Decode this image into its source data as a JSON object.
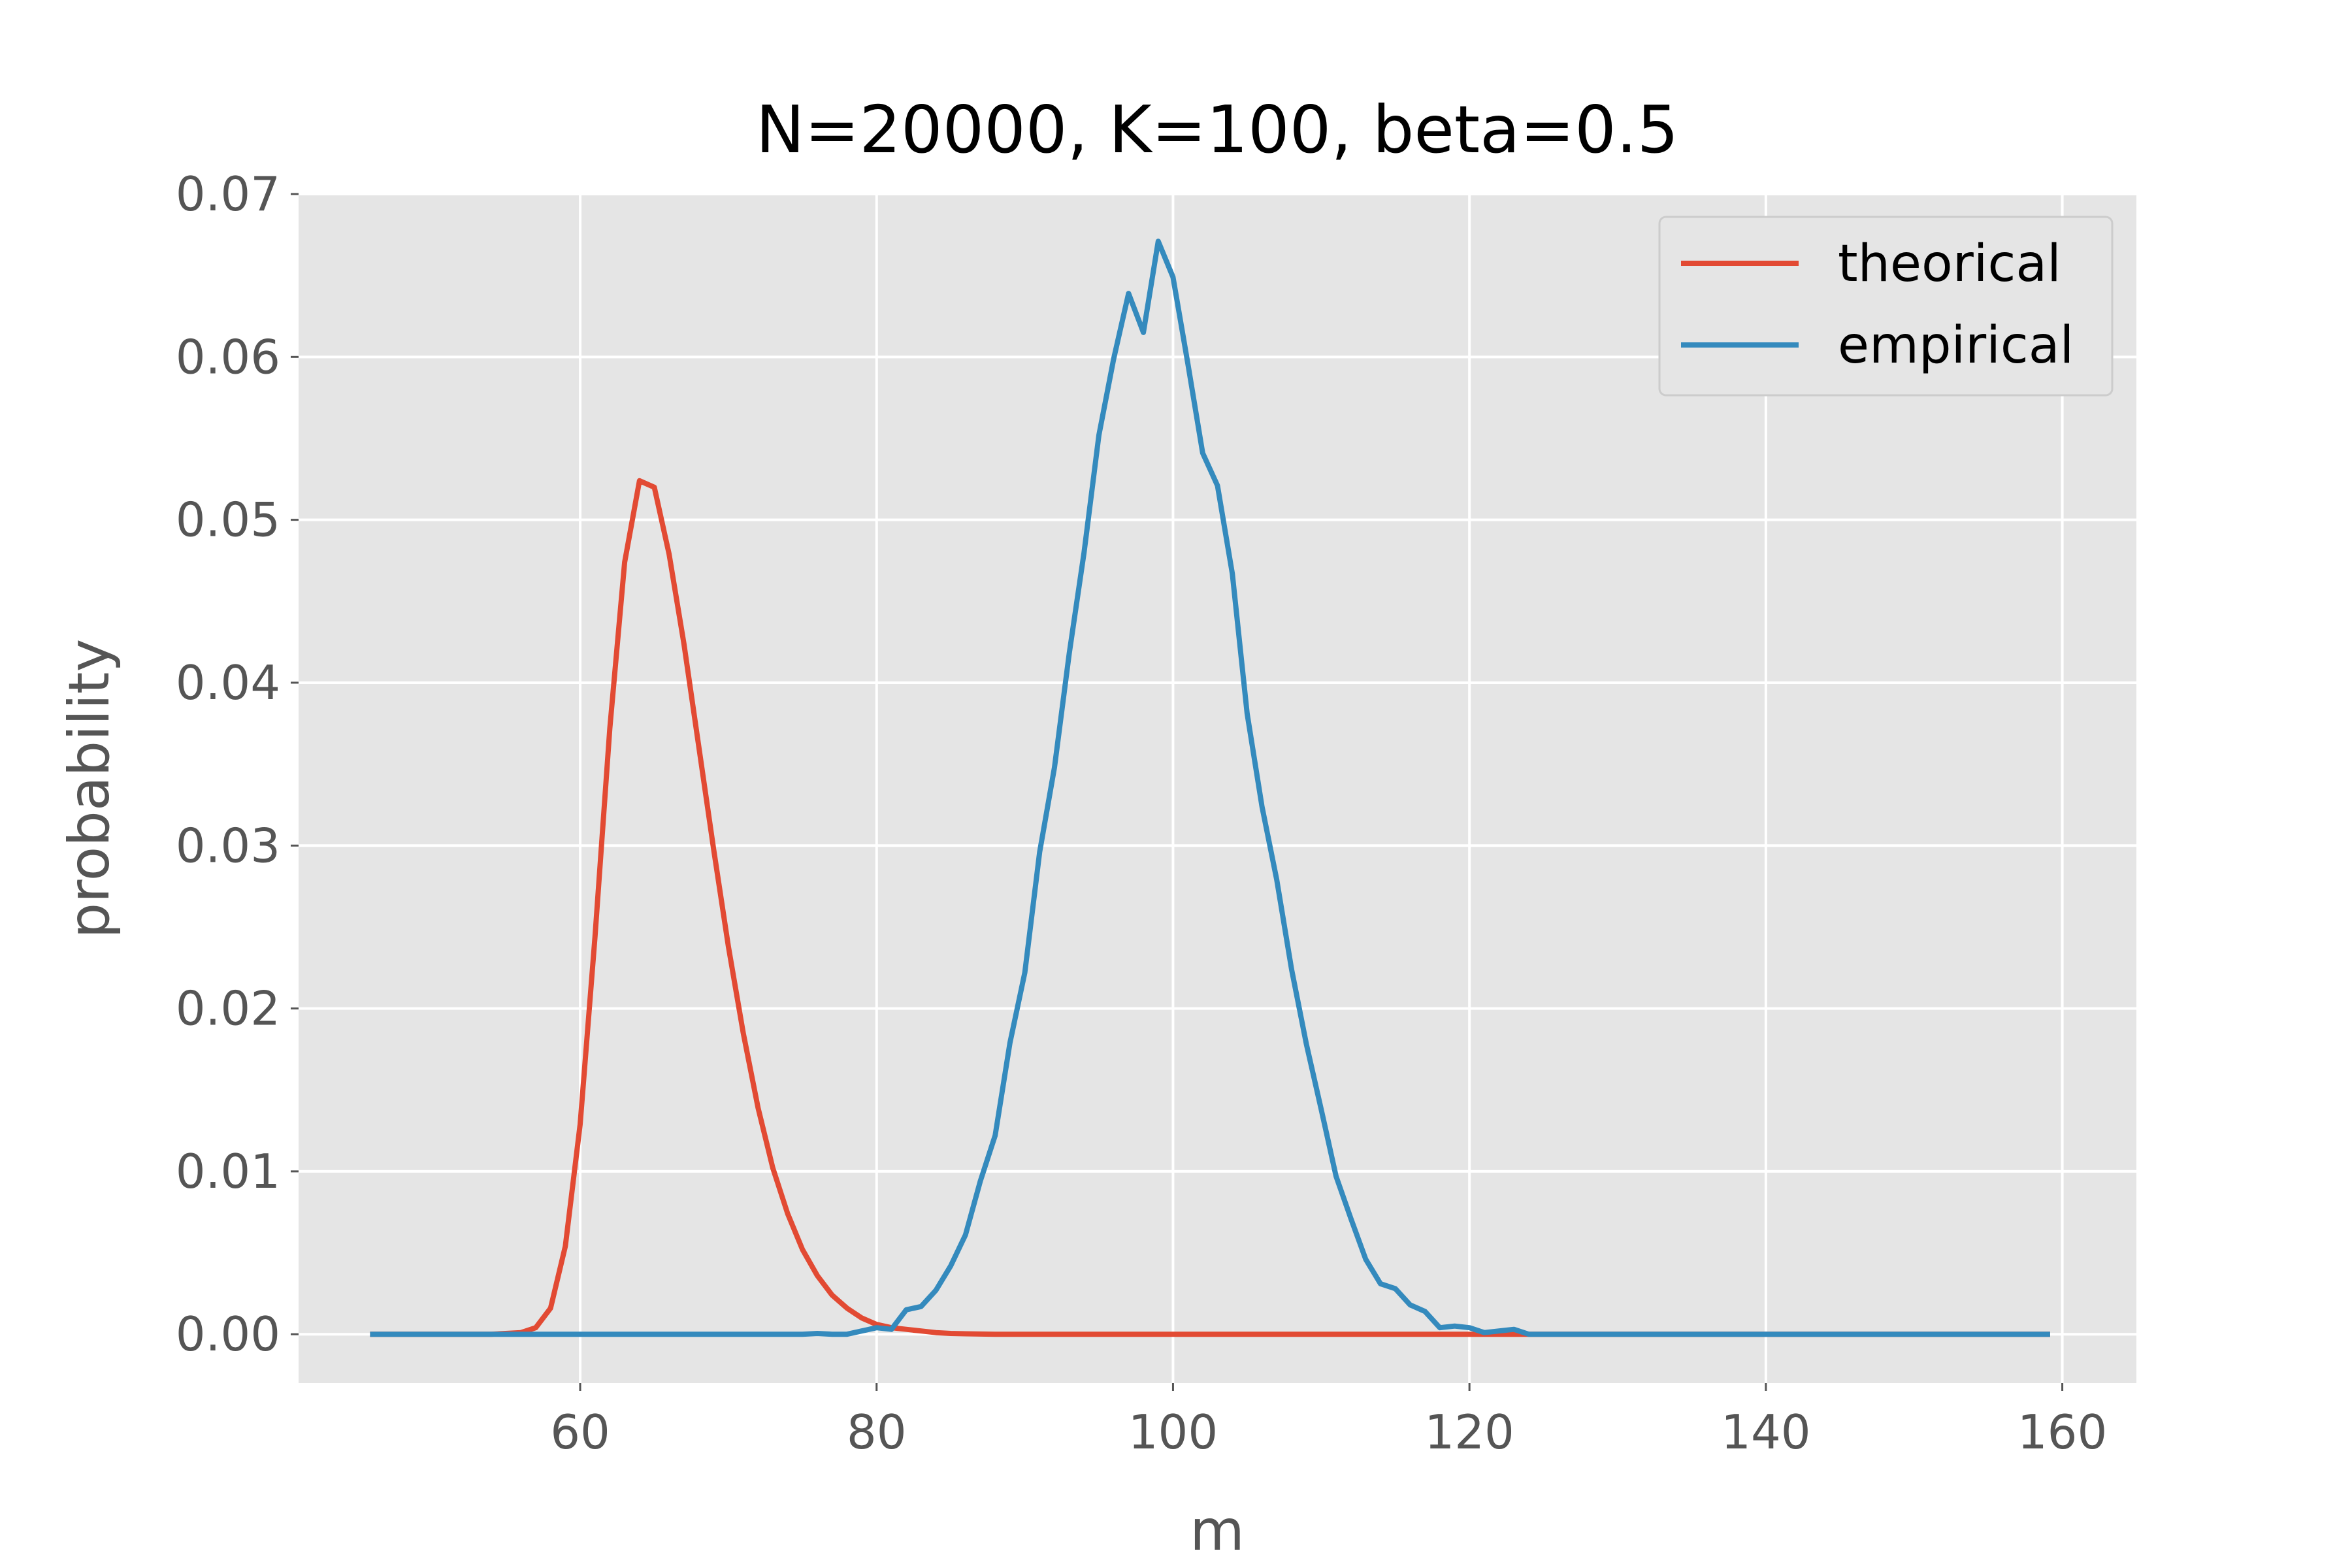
{
  "chart_data": {
    "type": "line",
    "title": "N=20000, K=100, beta=0.5",
    "xlabel": "m",
    "ylabel": "probability",
    "xlim": [
      41,
      165
    ],
    "ylim": [
      -0.003,
      0.07
    ],
    "xticks": [
      60,
      80,
      100,
      120,
      140,
      160
    ],
    "yticks": [
      0.0,
      0.01,
      0.02,
      0.03,
      0.04,
      0.05,
      0.06,
      0.07
    ],
    "xtick_labels": [
      "60",
      "80",
      "100",
      "120",
      "140",
      "160"
    ],
    "ytick_labels": [
      "0.00",
      "0.01",
      "0.02",
      "0.03",
      "0.04",
      "0.05",
      "0.06",
      "0.07"
    ],
    "grid": true,
    "legend": {
      "position": "top-right"
    },
    "series": [
      {
        "name": "theorical",
        "color": "#E24A33",
        "x": [
          46,
          50,
          54,
          56,
          57,
          58,
          59,
          60,
          61,
          62,
          63,
          64,
          65,
          66,
          67,
          68,
          69,
          70,
          71,
          72,
          73,
          74,
          75,
          76,
          77,
          78,
          79,
          80,
          81,
          82,
          83,
          84,
          85,
          86,
          88,
          90,
          100,
          110,
          120,
          130,
          140,
          150,
          159
        ],
        "y": [
          0.0,
          0.0,
          0.0,
          0.0001,
          0.0004,
          0.0016,
          0.0054,
          0.0129,
          0.0244,
          0.0372,
          0.0474,
          0.0524,
          0.052,
          0.0479,
          0.0424,
          0.0361,
          0.0298,
          0.0238,
          0.0185,
          0.0139,
          0.0102,
          0.0074,
          0.0052,
          0.0036,
          0.0024,
          0.0016,
          0.001,
          0.0006,
          0.0004,
          0.0003,
          0.0002,
          0.0001,
          5e-05,
          3e-05,
          0.0,
          0.0,
          0.0,
          0.0,
          0.0,
          0.0,
          0.0,
          0.0,
          0.0
        ]
      },
      {
        "name": "empirical",
        "color": "#348ABD",
        "x": [
          46,
          50,
          55,
          60,
          65,
          70,
          74,
          75,
          76,
          77,
          78,
          79,
          80,
          81,
          82,
          83,
          84,
          85,
          86,
          87,
          88,
          89,
          90,
          91,
          92,
          93,
          94,
          95,
          96,
          97,
          98,
          99,
          100,
          101,
          102,
          103,
          104,
          105,
          106,
          107,
          108,
          109,
          110,
          111,
          112,
          113,
          114,
          115,
          116,
          117,
          118,
          119,
          120,
          121,
          122,
          123,
          124,
          130,
          140,
          150,
          159
        ],
        "y": [
          0.0,
          0.0,
          0.0,
          0.0,
          0.0,
          0.0,
          0.0,
          0.0,
          5e-05,
          0.0,
          0.0,
          0.0002,
          0.0004,
          0.0003,
          0.0015,
          0.0017,
          0.0027,
          0.0042,
          0.0061,
          0.0094,
          0.0122,
          0.0179,
          0.0222,
          0.0296,
          0.0348,
          0.0418,
          0.048,
          0.0552,
          0.0599,
          0.0639,
          0.0615,
          0.0671,
          0.0649,
          0.0596,
          0.0541,
          0.0521,
          0.0467,
          0.0381,
          0.0324,
          0.0279,
          0.0224,
          0.0178,
          0.0138,
          0.0097,
          0.0071,
          0.0046,
          0.0031,
          0.0028,
          0.0018,
          0.0014,
          0.0004,
          0.0005,
          0.0004,
          0.0001,
          0.0002,
          0.0003,
          0.0,
          0.0,
          0.0,
          0.0,
          0.0
        ]
      }
    ]
  }
}
